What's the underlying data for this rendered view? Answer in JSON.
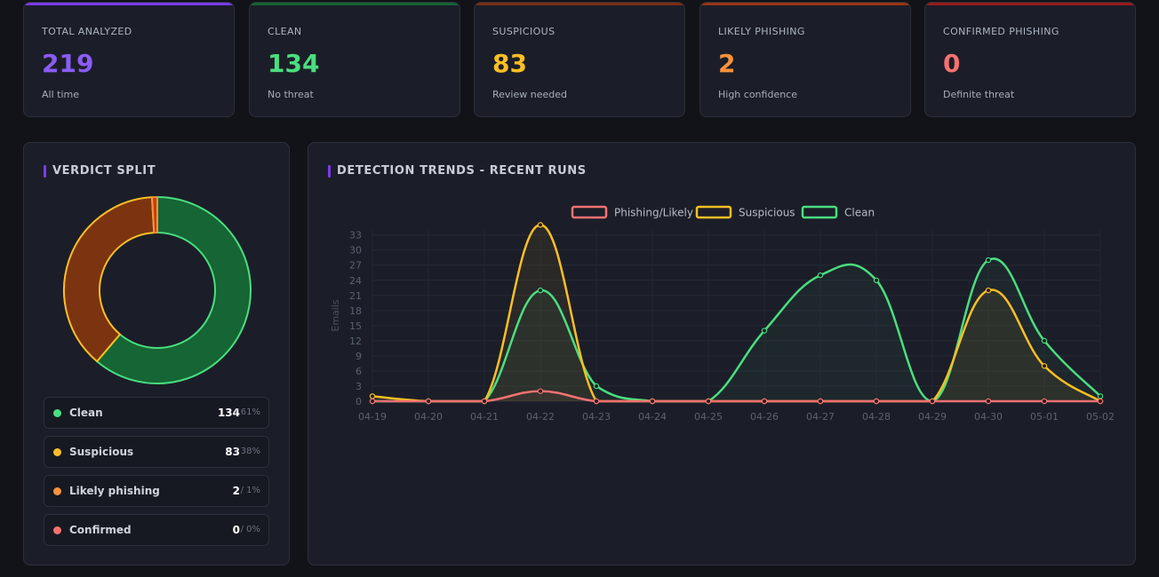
{
  "stats": [
    {
      "label": "TOTAL ANALYZED",
      "value": "219",
      "sub": "All time",
      "color": "#8b5cf6",
      "line": "#7c3aed"
    },
    {
      "label": "CLEAN",
      "value": "134",
      "sub": "No threat",
      "color": "#4ade80",
      "line": "#166534"
    },
    {
      "label": "SUSPICIOUS",
      "value": "83",
      "sub": "Review needed",
      "color": "#fbbf24",
      "line": "#7c2d12"
    },
    {
      "label": "LIKELY PHISHING",
      "value": "2",
      "sub": "High confidence",
      "color": "#fb923c",
      "line": "#9a3412"
    },
    {
      "label": "CONFIRMED PHISHING",
      "value": "0",
      "sub": "Definite threat",
      "color": "#f87171",
      "line": "#991b1b"
    }
  ],
  "verdict": {
    "title": "VERDICT SPLIT",
    "items": [
      {
        "name": "Clean",
        "count": "134",
        "pct": "/ 61%",
        "color": "#4ade80",
        "value": 134
      },
      {
        "name": "Suspicious",
        "count": "83",
        "pct": "/ 38%",
        "color": "#fbbf24",
        "value": 83
      },
      {
        "name": "Likely phishing",
        "count": "2",
        "pct": "/ 1%",
        "color": "#fb923c",
        "value": 2
      },
      {
        "name": "Confirmed",
        "count": "0",
        "pct": "/ 0%",
        "color": "#f87171",
        "value": 0
      }
    ]
  },
  "trends": {
    "title": "DETECTION TRENDS - RECENT RUNS"
  },
  "chart_data": {
    "type": "line",
    "ylabel": "Emails",
    "ylim": [
      0,
      34
    ],
    "yticks": [
      0,
      3,
      6,
      9,
      12,
      15,
      18,
      21,
      24,
      27,
      30,
      33
    ],
    "x": [
      "04-19",
      "04-20",
      "04-21",
      "04-22",
      "04-23",
      "04-24",
      "04-25",
      "04-26",
      "04-27",
      "04-28",
      "04-29",
      "04-30",
      "05-01",
      "05-02"
    ],
    "legend_position": "top",
    "grid": true,
    "series": [
      {
        "name": "Phishing/Likely",
        "color": "#f87171",
        "values": [
          0,
          0,
          0,
          2,
          0,
          0,
          0,
          0,
          0,
          0,
          0,
          0,
          0,
          0
        ]
      },
      {
        "name": "Suspicious",
        "color": "#fbbf24",
        "values": [
          1,
          0,
          0,
          35,
          0,
          0,
          0,
          0,
          0,
          0,
          0,
          22,
          7,
          0
        ]
      },
      {
        "name": "Clean",
        "color": "#4ade80",
        "values": [
          0,
          0,
          0,
          22,
          3,
          0,
          0,
          14,
          25,
          24,
          0,
          28,
          12,
          1
        ]
      }
    ]
  }
}
